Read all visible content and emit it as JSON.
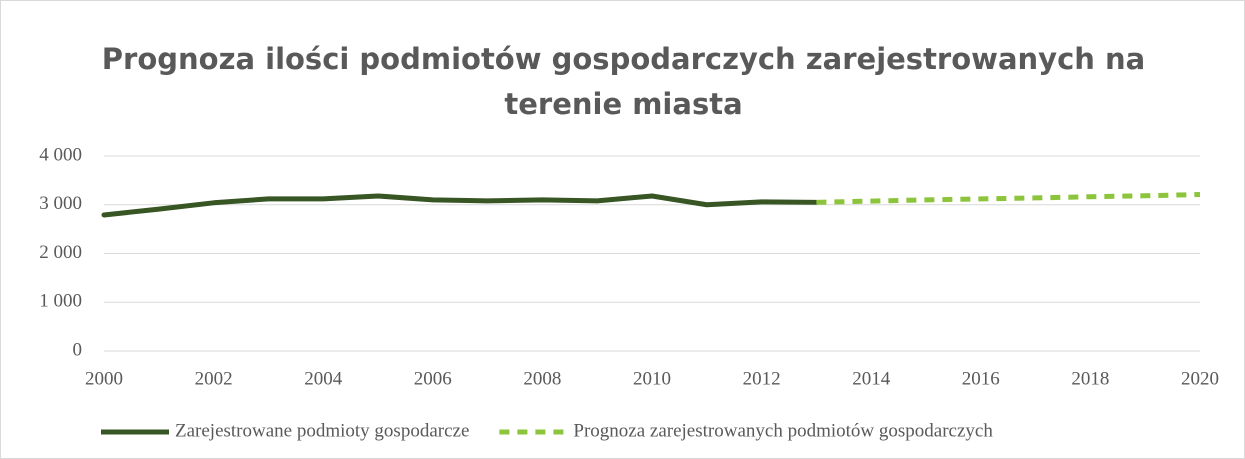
{
  "chart_data": {
    "type": "line",
    "title": "Prognoza ilości podmiotów gospodarczych zarejestrowanych na terenie miasta",
    "xlim": [
      2000,
      2020
    ],
    "xticks": [
      2000,
      2002,
      2004,
      2006,
      2008,
      2010,
      2012,
      2014,
      2016,
      2018,
      2020
    ],
    "ylim": [
      0,
      4000
    ],
    "yticks": [
      0,
      {
        "value": 1000,
        "label": "1 000"
      },
      {
        "value": 2000,
        "label": "2 000"
      },
      {
        "value": 3000,
        "label": "3 000"
      },
      {
        "value": 4000,
        "label": "4 000"
      }
    ],
    "grid": true,
    "legend": "bottom",
    "series": [
      {
        "name": "Zarejestrowane podmioty gospodarcze",
        "color": "#375623",
        "dash": false,
        "x": [
          2000,
          2001,
          2002,
          2003,
          2004,
          2005,
          2006,
          2007,
          2008,
          2009,
          2010,
          2011,
          2012,
          2013
        ],
        "values": [
          2790,
          2910,
          3040,
          3120,
          3120,
          3180,
          3100,
          3080,
          3100,
          3080,
          3180,
          3000,
          3060,
          3050
        ]
      },
      {
        "name": "Prognoza zarejestrowanych podmiotów gospodarczych",
        "color": "#8cc43c",
        "dash": true,
        "x": [
          2013,
          2014,
          2015,
          2016,
          2017,
          2018,
          2019,
          2020
        ],
        "values": [
          3050,
          3075,
          3100,
          3120,
          3140,
          3165,
          3185,
          3210
        ]
      }
    ]
  }
}
